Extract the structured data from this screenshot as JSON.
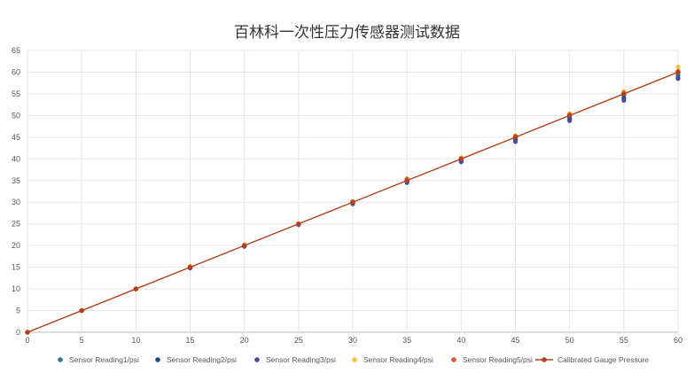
{
  "chart_data": {
    "type": "scatter",
    "title": "百林科一次性压力传感器测试数据",
    "xlabel": "",
    "ylabel": "",
    "xlim": [
      0,
      60
    ],
    "ylim": [
      0,
      65
    ],
    "x_ticks": [
      0,
      5,
      10,
      15,
      20,
      25,
      30,
      35,
      40,
      45,
      50,
      55,
      60
    ],
    "y_ticks": [
      0,
      5,
      10,
      15,
      20,
      25,
      30,
      35,
      40,
      45,
      50,
      55,
      60,
      65
    ],
    "grid": true,
    "legend_position": "bottom",
    "x": [
      0,
      5,
      10,
      15,
      20,
      25,
      30,
      35,
      40,
      45,
      50,
      55,
      60
    ],
    "series": [
      {
        "name": "Sensor Reading1/psi",
        "kind": "scatter",
        "color": "#2e7a8c",
        "values": [
          0,
          5.0,
          10.0,
          15.0,
          20.0,
          25.0,
          29.8,
          35.0,
          39.7,
          44.5,
          49.5,
          54.5,
          59.3
        ]
      },
      {
        "name": "Sensor Reading2/psi",
        "kind": "scatter",
        "color": "#1f4e8c",
        "values": [
          0,
          5.0,
          10.0,
          14.9,
          19.9,
          24.9,
          29.7,
          34.7,
          39.5,
          44.3,
          49.2,
          54.0,
          58.7
        ]
      },
      {
        "name": "Sensor Reading3/psi",
        "kind": "scatter",
        "color": "#4b4a9c",
        "values": [
          0,
          5.0,
          10.0,
          14.8,
          19.8,
          24.8,
          29.6,
          34.5,
          39.3,
          44.0,
          48.8,
          53.5,
          58.5
        ]
      },
      {
        "name": "Sensor Reading4/psi",
        "kind": "scatter",
        "color": "#f2c531",
        "values": [
          0,
          5.0,
          10.1,
          15.2,
          20.2,
          25.1,
          30.2,
          35.5,
          40.3,
          45.4,
          50.5,
          55.6,
          61.2
        ]
      },
      {
        "name": "Sensor Reading5/psi",
        "kind": "scatter",
        "color": "#e0582c",
        "values": [
          0,
          5.0,
          10.0,
          15.1,
          20.1,
          25.0,
          30.1,
          35.3,
          40.1,
          45.2,
          50.2,
          55.2,
          60.2
        ]
      },
      {
        "name": "Calibrated Gauge Pressure",
        "kind": "line",
        "color": "#b5401e",
        "values": [
          0,
          5,
          10,
          15,
          20,
          25,
          30,
          35,
          40,
          45,
          50,
          55,
          60
        ]
      }
    ]
  }
}
